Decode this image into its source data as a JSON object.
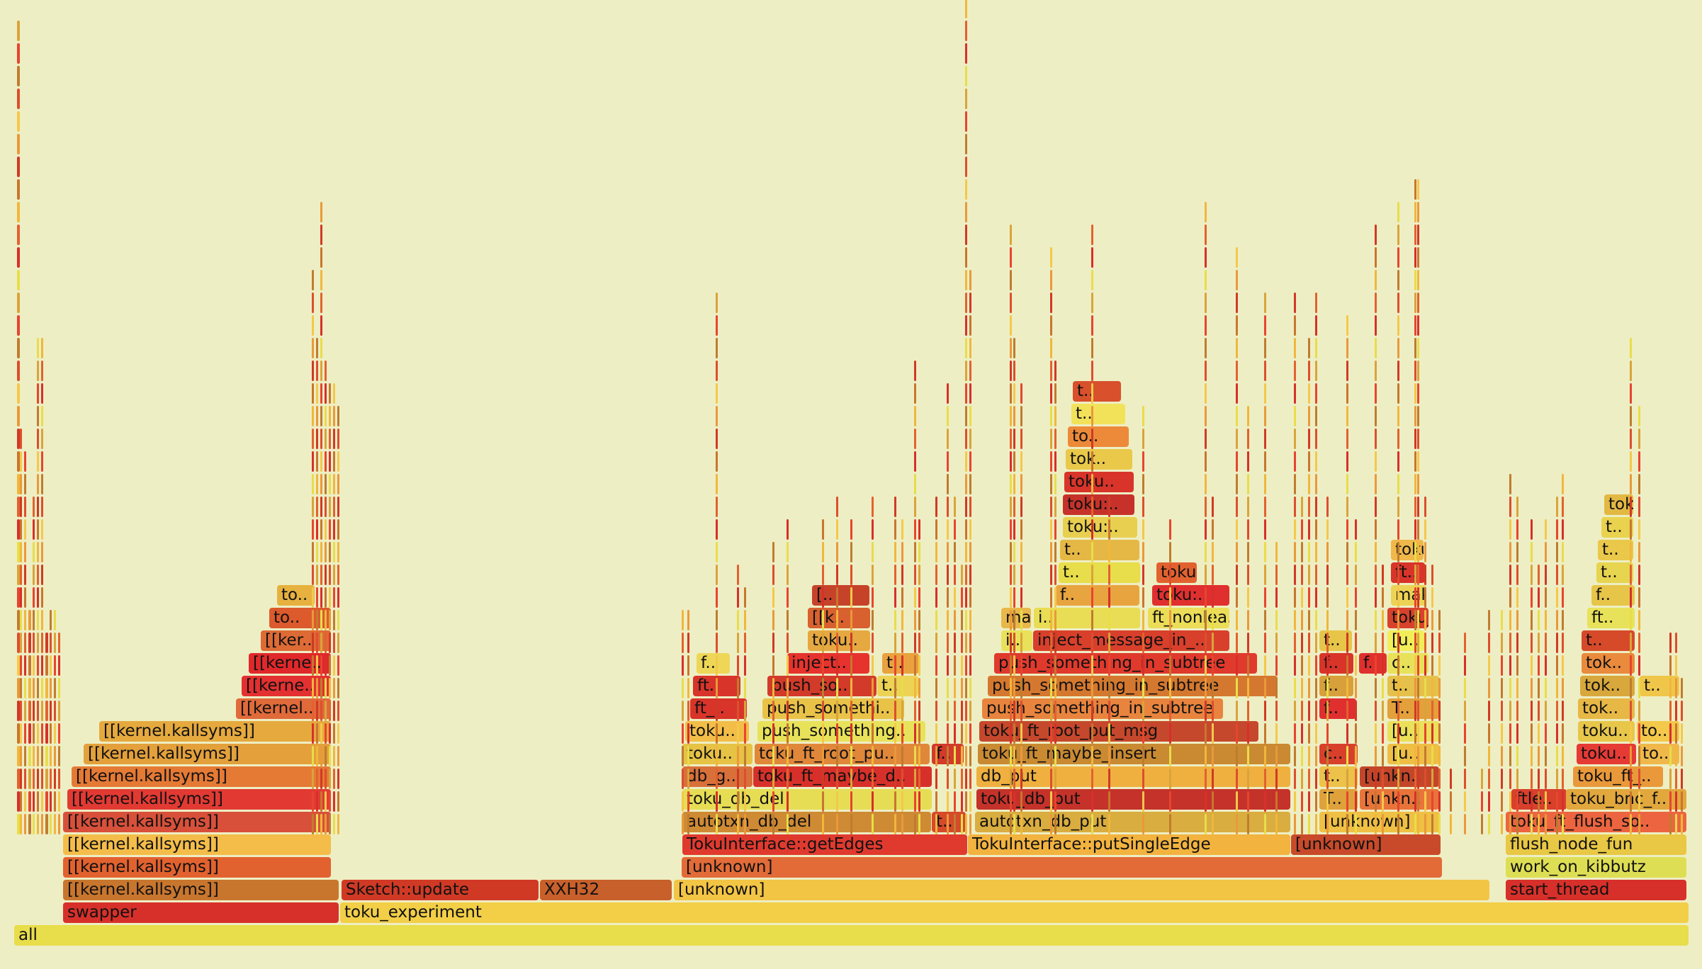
{
  "palette": [
    "#e8dd4a",
    "#d7302a",
    "#e2622f",
    "#f0b73c",
    "#c8762e",
    "#d03a25",
    "#e9993a",
    "#f4c84a",
    "#dc4f2d",
    "#bf7c2f",
    "#e7452e",
    "#d9a43a"
  ],
  "frames": [
    {
      "label": "all",
      "color": "#e8dd4a"
    },
    {
      "label": "swapper",
      "color": "#d7302a"
    },
    {
      "label": "toku_experiment",
      "color": "#f2cf47"
    },
    {
      "label": "[[kernel.kallsyms]]",
      "color": "#c8762e"
    },
    {
      "label": "Sketch::update",
      "color": "#d03a25"
    },
    {
      "label": "XXH32",
      "color": "#c8602b"
    },
    {
      "label": "[unknown]",
      "color": "#f3c545"
    },
    {
      "label": "start_thread",
      "color": "#d7302a"
    },
    {
      "label": "[[kernel.kallsyms]]",
      "color": "#e2622f"
    },
    {
      "label": "[unknown]",
      "color": "#e26b38"
    },
    {
      "label": "work_on_kibbutz",
      "color": "#dede55"
    },
    {
      "label": "[[kernel.kallsyms]]",
      "color": "#f4bd4a"
    },
    {
      "label": "TokuInterface::getEdges",
      "color": "#e03a2f"
    },
    {
      "label": "TokuInterface::putSingleEdge",
      "color": "#f2b33f"
    },
    {
      "label": "[unknown]",
      "color": "#c84a2a"
    },
    {
      "label": "flush_node_fun",
      "color": "#e8c844"
    },
    {
      "label": "[[kernel.kallsyms]]",
      "color": "#d8503a"
    },
    {
      "label": "autotxn_db_del",
      "color": "#cf8a34"
    },
    {
      "label": "t..",
      "color": "#d64a2a"
    },
    {
      "label": "autotxn_db_put",
      "color": "#d9ad3f"
    },
    {
      "label": "[unknown]",
      "color": "#efc043"
    },
    {
      "label": "toku_ft_flush_so..",
      "color": "#ec6540"
    },
    {
      "label": "[[kernel.kallsyms]]",
      "color": "#e23a33"
    },
    {
      "label": "toku_db_del",
      "color": "#e6dd55"
    },
    {
      "label": "toku_db_put",
      "color": "#c5322a"
    },
    {
      "label": "T..",
      "color": "#dfa13b"
    },
    {
      "label": "[unkn..",
      "color": "#e8743a"
    },
    {
      "label": "ftle..",
      "color": "#d8402c"
    },
    {
      "label": "toku_bnc_f..",
      "color": "#e2a83d"
    },
    {
      "label": "[[kernel.kallsyms]]",
      "color": "#e57a35"
    },
    {
      "label": "db_g..",
      "color": "#d9703a"
    },
    {
      "label": "toku_ft_maybe_d..",
      "color": "#d7302a"
    },
    {
      "label": "db_put",
      "color": "#efb040"
    },
    {
      "label": "t..",
      "color": "#ecc24a"
    },
    {
      "label": "[unkn..",
      "color": "#c3462a"
    },
    {
      "label": "toku_ft_..",
      "color": "#e9993a"
    },
    {
      "label": "[[kernel.kallsyms]]",
      "color": "#e3a03b"
    },
    {
      "label": "toku..",
      "color": "#e6c245"
    },
    {
      "label": "toku_ft_root_pu..",
      "color": "#e0873a"
    },
    {
      "label": "f..",
      "color": "#d23a2a"
    },
    {
      "label": "toku_ft_maybe_insert",
      "color": "#c98a32"
    },
    {
      "label": "c..",
      "color": "#d8402c"
    },
    {
      "label": "[u..",
      "color": "#efbe45"
    },
    {
      "label": "toku..",
      "color": "#e63a35"
    },
    {
      "label": "to..",
      "color": "#f0b84a"
    },
    {
      "label": "[[kernel.kallsyms]]",
      "color": "#e5a93e"
    },
    {
      "label": "toku..",
      "color": "#f2be48"
    },
    {
      "label": "push_something..",
      "color": "#e8e25a"
    },
    {
      "label": "toku_ft_root_put_msg",
      "color": "#c6482c"
    },
    {
      "label": "[u..",
      "color": "#ebe05a"
    },
    {
      "label": "toku..",
      "color": "#e7c64a"
    },
    {
      "label": "to..",
      "color": "#f4c84a"
    },
    {
      "label": "[[kernel..",
      "color": "#e16a3a"
    },
    {
      "label": "ft_..",
      "color": "#d8342a"
    },
    {
      "label": "push_somethi..",
      "color": "#e9c248"
    },
    {
      "label": "push_something_in_subtree",
      "color": "#e8843e"
    },
    {
      "label": "f..",
      "color": "#e02f2f"
    },
    {
      "label": "T..",
      "color": "#e3a03b"
    },
    {
      "label": "tok..",
      "color": "#e7b845"
    },
    {
      "label": "[[kerne..",
      "color": "#e33030"
    },
    {
      "label": "ft..",
      "color": "#d8342a"
    },
    {
      "label": "push_so..",
      "color": "#d23a2a"
    },
    {
      "label": "t..",
      "color": "#ecd355"
    },
    {
      "label": "push_something_in_subtree",
      "color": "#d5782f"
    },
    {
      "label": "f..",
      "color": "#d8a03a"
    },
    {
      "label": "t..",
      "color": "#e5c04a"
    },
    {
      "label": "tok..",
      "color": "#d8a83c"
    },
    {
      "label": "t..",
      "color": "#efc64a"
    },
    {
      "label": "[[kerne..",
      "color": "#e0282b"
    },
    {
      "label": "f..",
      "color": "#eed757"
    },
    {
      "label": "inject..",
      "color": "#e6332e"
    },
    {
      "label": "t..",
      "color": "#e9a23e"
    },
    {
      "label": "push_something_in_subtree",
      "color": "#e03a2d"
    },
    {
      "label": "f..",
      "color": "#d8342a"
    },
    {
      "label": "f..",
      "color": "#e0302e"
    },
    {
      "label": "c..",
      "color": "#e8e25a"
    },
    {
      "label": "tok..",
      "color": "#e98a3c"
    },
    {
      "label": "[[ker..",
      "color": "#de6a35"
    },
    {
      "label": "toku..",
      "color": "#e6a840"
    },
    {
      "label": "i..",
      "color": "#e9e15a"
    },
    {
      "label": "inject_message_in_..",
      "color": "#d8402c"
    },
    {
      "label": "t..",
      "color": "#e6c549"
    },
    {
      "label": "[u..",
      "color": "#f2ee5a"
    },
    {
      "label": "t..",
      "color": "#d64a2a"
    },
    {
      "label": "to..",
      "color": "#dc5a2c"
    },
    {
      "label": "[[k..",
      "color": "#d8612f"
    },
    {
      "label": "ma..",
      "color": "#e8b84a"
    },
    {
      "label": "i..",
      "color": "#e9dd55"
    },
    {
      "label": "ft_nonlea..",
      "color": "#ecdd58"
    },
    {
      "label": "toku_..",
      "color": "#d8422c"
    },
    {
      "label": "ft..",
      "color": "#e8e25a"
    },
    {
      "label": "to..",
      "color": "#e6b13f"
    },
    {
      "label": "[..",
      "color": "#c6432a"
    },
    {
      "label": "f..",
      "color": "#e8a43e"
    },
    {
      "label": "toku:..",
      "color": "#e02f2f"
    },
    {
      "label": "make_..",
      "color": "#ecd355"
    },
    {
      "label": "f..",
      "color": "#e6c549"
    },
    {
      "label": "t..",
      "color": "#e8dd4a"
    },
    {
      "label": "toku:..",
      "color": "#e2622f"
    },
    {
      "label": "ft..",
      "color": "#d8342a"
    },
    {
      "label": "t..",
      "color": "#e7d44f"
    },
    {
      "label": "t..",
      "color": "#e5b845"
    },
    {
      "label": "toku:..",
      "color": "#f0b84a"
    },
    {
      "label": "t..",
      "color": "#e9c84a"
    },
    {
      "label": "toku:..",
      "color": "#e8cf50"
    },
    {
      "label": "t..",
      "color": "#e9d24e"
    },
    {
      "label": "toku:..",
      "color": "#c6322a"
    },
    {
      "label": "toku..",
      "color": "#e3b842"
    },
    {
      "label": "toku..",
      "color": "#d8342a"
    },
    {
      "label": "tok..",
      "color": "#e9c84a"
    },
    {
      "label": "to..",
      "color": "#ec8a3a"
    },
    {
      "label": "t..",
      "color": "#f2e25a"
    },
    {
      "label": "t..",
      "color": "#d8502c"
    }
  ]
}
